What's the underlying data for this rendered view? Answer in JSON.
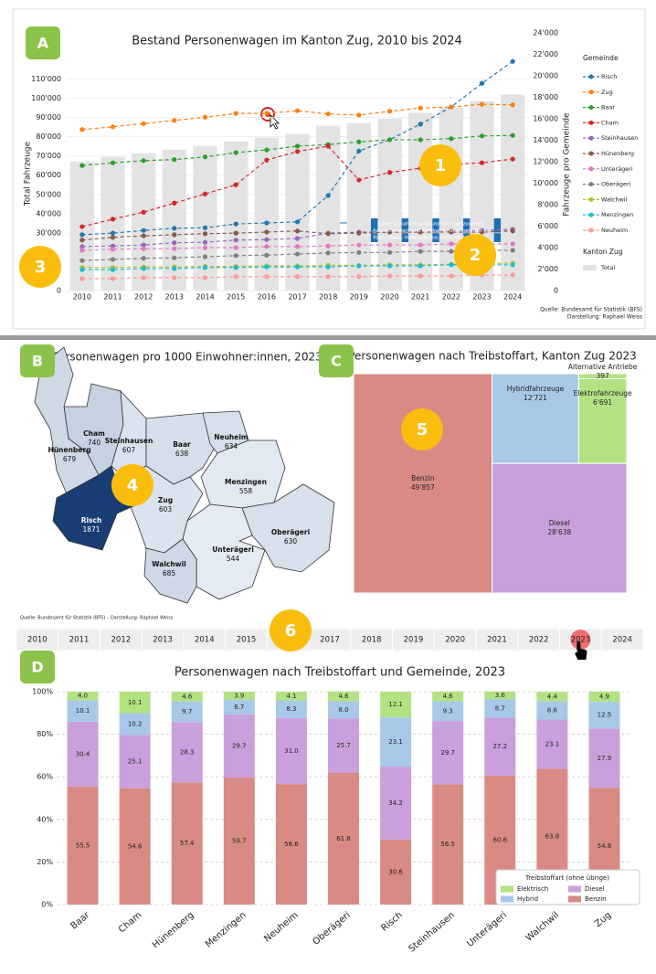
{
  "chart_data": [
    {
      "type": "combo",
      "title": "Bestand Personenwagen im Kanton Zug, 2010 bis 2024",
      "categories": [
        "2010",
        "2011",
        "2012",
        "2013",
        "2014",
        "2015",
        "2016",
        "2017",
        "2018",
        "2019",
        "2020",
        "2021",
        "2022",
        "2023",
        "2024"
      ],
      "y_label": "Total Fahrzeuge",
      "y2_label": "Fahrzeuge pro Gemeinde",
      "ylim": [
        0,
        134000
      ],
      "yticks": [
        0,
        {
          "value": 30000,
          "label": "30'000"
        },
        {
          "value": 40000,
          "label": "40'000"
        },
        {
          "value": 50000,
          "label": "50'000"
        },
        {
          "value": 60000,
          "label": "60'000"
        },
        {
          "value": 70000,
          "label": "70'000"
        },
        {
          "value": 80000,
          "label": "80'000"
        },
        {
          "value": 90000,
          "label": "90'000"
        },
        {
          "value": 100000,
          "label": "100'000"
        },
        {
          "value": 110000,
          "label": "110'000"
        }
      ],
      "y2lim": [
        0,
        24000
      ],
      "y2ticks": [
        0,
        {
          "value": 2000,
          "label": "2'000"
        },
        {
          "value": 4000,
          "label": "4'000"
        },
        {
          "value": 6000,
          "label": "6'000"
        },
        {
          "value": 8000,
          "label": "8'000"
        },
        {
          "value": 10000,
          "label": "10'000"
        },
        {
          "value": 12000,
          "label": "12'000"
        },
        {
          "value": 14000,
          "label": "14'000"
        },
        {
          "value": 16000,
          "label": "16'000"
        },
        {
          "value": 18000,
          "label": "18'000"
        },
        {
          "value": 20000,
          "label": "20'000"
        },
        {
          "value": 22000,
          "label": "22'000"
        },
        {
          "value": 24000,
          "label": "24'000"
        }
      ],
      "grid": true,
      "legend_titles": [
        "Gemeinde",
        "Kanton Zug"
      ],
      "series": [
        {
          "name": "Total",
          "type": "bar",
          "color": "#e3e3e3",
          "values": [
            67000,
            69500,
            71400,
            73300,
            75200,
            77600,
            79500,
            81400,
            85700,
            87100,
            89500,
            92400,
            95200,
            98600,
            101900
          ]
        },
        {
          "name": "Risch",
          "type": "line",
          "axis": "y2",
          "color": "#1f77b4",
          "values": [
            5200,
            5350,
            5600,
            5800,
            5850,
            6200,
            6300,
            6400,
            8850,
            13000,
            14050,
            15500,
            17100,
            19300,
            21350
          ]
        },
        {
          "name": "Zug",
          "type": "line",
          "axis": "y2",
          "color": "#ff7f0e",
          "values": [
            15000,
            15250,
            15550,
            15850,
            16150,
            16500,
            16500,
            16750,
            16450,
            16350,
            16700,
            17000,
            17100,
            17350,
            17300
          ]
        },
        {
          "name": "Baar",
          "type": "line",
          "axis": "y2",
          "color": "#2ca02c",
          "values": [
            11650,
            11900,
            12100,
            12200,
            12450,
            12850,
            13100,
            13450,
            13600,
            13850,
            14050,
            14050,
            14150,
            14400,
            14450
          ]
        },
        {
          "name": "Cham",
          "type": "line",
          "axis": "y2",
          "color": "#d62728",
          "values": [
            5950,
            6650,
            7300,
            8150,
            9000,
            9850,
            12150,
            12950,
            13450,
            10300,
            11000,
            11400,
            11750,
            11900,
            12250
          ]
        },
        {
          "name": "Steinhausen",
          "type": "line",
          "axis": "y2",
          "color": "#9467bd",
          "values": [
            4100,
            4150,
            4250,
            4450,
            4500,
            4700,
            4750,
            4850,
            5350,
            5450,
            5450,
            5450,
            5550,
            5600,
            5700
          ]
        },
        {
          "name": "Hünenberg",
          "type": "line",
          "axis": "y2",
          "color": "#8c564b",
          "values": [
            4700,
            4950,
            5100,
            5200,
            5300,
            5350,
            5450,
            5550,
            5300,
            5350,
            5450,
            5450,
            5450,
            5450,
            5550
          ]
        },
        {
          "name": "Unterägeri",
          "type": "line",
          "axis": "y2",
          "color": "#e377c2",
          "values": [
            3750,
            3850,
            3900,
            3900,
            4000,
            4000,
            4100,
            4100,
            4150,
            4250,
            4250,
            4250,
            4350,
            4350,
            4350
          ]
        },
        {
          "name": "Oberägeri",
          "type": "line",
          "axis": "y2",
          "color": "#7f7f7f",
          "values": [
            2800,
            2900,
            3000,
            3050,
            3150,
            3250,
            3300,
            3400,
            3500,
            3550,
            3550,
            3650,
            3650,
            3750,
            3750
          ]
        },
        {
          "name": "Walchwil",
          "type": "line",
          "axis": "y2",
          "color": "#bcbd22",
          "values": [
            2150,
            2150,
            2200,
            2200,
            2250,
            2250,
            2300,
            2300,
            2350,
            2350,
            2400,
            2400,
            2450,
            2500,
            2550
          ]
        },
        {
          "name": "Menzingen",
          "type": "line",
          "axis": "y2",
          "color": "#17becf",
          "values": [
            1950,
            1950,
            2050,
            2050,
            2150,
            2150,
            2200,
            2200,
            2200,
            2300,
            2300,
            2300,
            2400,
            2400,
            2400
          ]
        },
        {
          "name": "Neuheim",
          "type": "line",
          "axis": "y2",
          "color": "#ff9896",
          "values": [
            1100,
            1100,
            1200,
            1200,
            1200,
            1300,
            1300,
            1300,
            1300,
            1300,
            1350,
            1350,
            1350,
            1450,
            1450
          ]
        }
      ],
      "annotation": [
        "Starke Zunahme aufgrund von zugezogenen",
        "Autovermietern und Carsharing-Unternehmen in",
        "Risch (Basis: Halteradresse, nicht Kontrollschild)"
      ],
      "source": [
        "Quelle: Bundesamt für Statistik (BFS)",
        "Darstellung: Raphael Weiss"
      ]
    },
    {
      "type": "map",
      "title": "Personenwagen pro 1000 Einwohner:innen, 2023",
      "categories": [
        "Cham",
        "Steinhausen",
        "Baar",
        "Neuheim",
        "Hünenberg",
        "Menzingen",
        "Zug",
        "Risch",
        "Oberägeri",
        "Unterägeri",
        "Walchwil"
      ],
      "values": [
        740,
        607,
        638,
        634,
        679,
        558,
        603,
        1871,
        630,
        544,
        685
      ],
      "color_min": "#f7fbff",
      "color_max": "#08306b",
      "source": "Quelle: Bundesamt für Statistik (BFS) – Darstellung: Raphael Weiss"
    },
    {
      "type": "treemap",
      "title": "Personenwagen nach Treibstoffart, Kanton Zug 2023",
      "categories": [
        "Benzin",
        "Diesel",
        "Hybridfahrzeuge",
        "Elektrofahrzeuge",
        "Alternative Antriebe"
      ],
      "values": [
        49857,
        28638,
        12721,
        6691,
        397
      ],
      "value_labels": [
        "49'857",
        "28'638",
        "12'721",
        "6'691",
        "397"
      ],
      "colors": [
        "#d98a85",
        "#c9a0dc",
        "#a8c8e8",
        "#b3e283",
        "#b3e283"
      ]
    },
    {
      "type": "stacked_bar",
      "title": "Personenwagen nach Treibstoffart und Gemeinde, 2023",
      "categories": [
        "Baar",
        "Cham",
        "Hünenberg",
        "Menzingen",
        "Neuheim",
        "Oberägeri",
        "Risch",
        "Steinhausen",
        "Unterägeri",
        "Walchwil",
        "Zug"
      ],
      "ylim": [
        0,
        100
      ],
      "yticks": [
        {
          "value": 0,
          "label": "0%"
        },
        {
          "value": 20,
          "label": "20%"
        },
        {
          "value": 40,
          "label": "40%"
        },
        {
          "value": 60,
          "label": "60%"
        },
        {
          "value": 80,
          "label": "80%"
        },
        {
          "value": 100,
          "label": "100%"
        }
      ],
      "grid": true,
      "legend_title": "Treibstoffart (ohne übrige)",
      "legend_position": "lower right",
      "series": [
        {
          "name": "Benzin",
          "color": "#d98a85",
          "values": [
            55.5,
            54.6,
            57.4,
            59.7,
            56.6,
            61.8,
            30.6,
            56.5,
            60.6,
            63.8,
            54.8
          ],
          "value_labels": [
            "55.5",
            "54.6",
            "57.4",
            "59.7",
            "56.6",
            "61.8",
            "30.6",
            "56.5",
            "60.6",
            "63.8",
            "54.8"
          ]
        },
        {
          "name": "Diesel",
          "color": "#c9a0dc",
          "values": [
            30.4,
            25.1,
            28.3,
            29.7,
            31.0,
            25.7,
            34.2,
            29.7,
            27.2,
            23.1,
            27.9
          ],
          "value_labels": [
            "30.4",
            "25.1",
            "28.3",
            "29.7",
            "31.0",
            "25.7",
            "34.2",
            "29.7",
            "27.2",
            "23.1",
            "27.9"
          ]
        },
        {
          "name": "Hybrid",
          "color": "#a8c8e8",
          "values": [
            10.1,
            10.2,
            9.7,
            6.7,
            8.3,
            8.0,
            23.1,
            9.3,
            8.7,
            8.6,
            12.5
          ],
          "value_labels": [
            "10.1",
            "10.2",
            "9.7",
            "6.7",
            "8.3",
            "8.0",
            "23.1",
            "9.3",
            "8.7",
            "8.6",
            "12.5"
          ]
        },
        {
          "name": "Elektrisch",
          "color": "#b3e283",
          "values": [
            4.0,
            10.1,
            4.6,
            3.9,
            4.1,
            4.6,
            12.1,
            4.6,
            3.6,
            4.4,
            4.9
          ],
          "value_labels": [
            "4.0",
            "10.1",
            "4.6",
            "3.9",
            "4.1",
            "4.6",
            "12.1",
            "4.6",
            "3.6",
            "4.4",
            "4.9"
          ]
        }
      ]
    }
  ],
  "timeline": {
    "years": [
      "2010",
      "2011",
      "2012",
      "2013",
      "2014",
      "2015",
      "2016",
      "2017",
      "2018",
      "2019",
      "2020",
      "2021",
      "2022",
      "2023",
      "2024"
    ],
    "selected": "2023"
  },
  "badges": {
    "panels": [
      "A",
      "B",
      "C",
      "D"
    ],
    "numbers": [
      "1",
      "2",
      "3",
      "4",
      "5",
      "6"
    ]
  }
}
